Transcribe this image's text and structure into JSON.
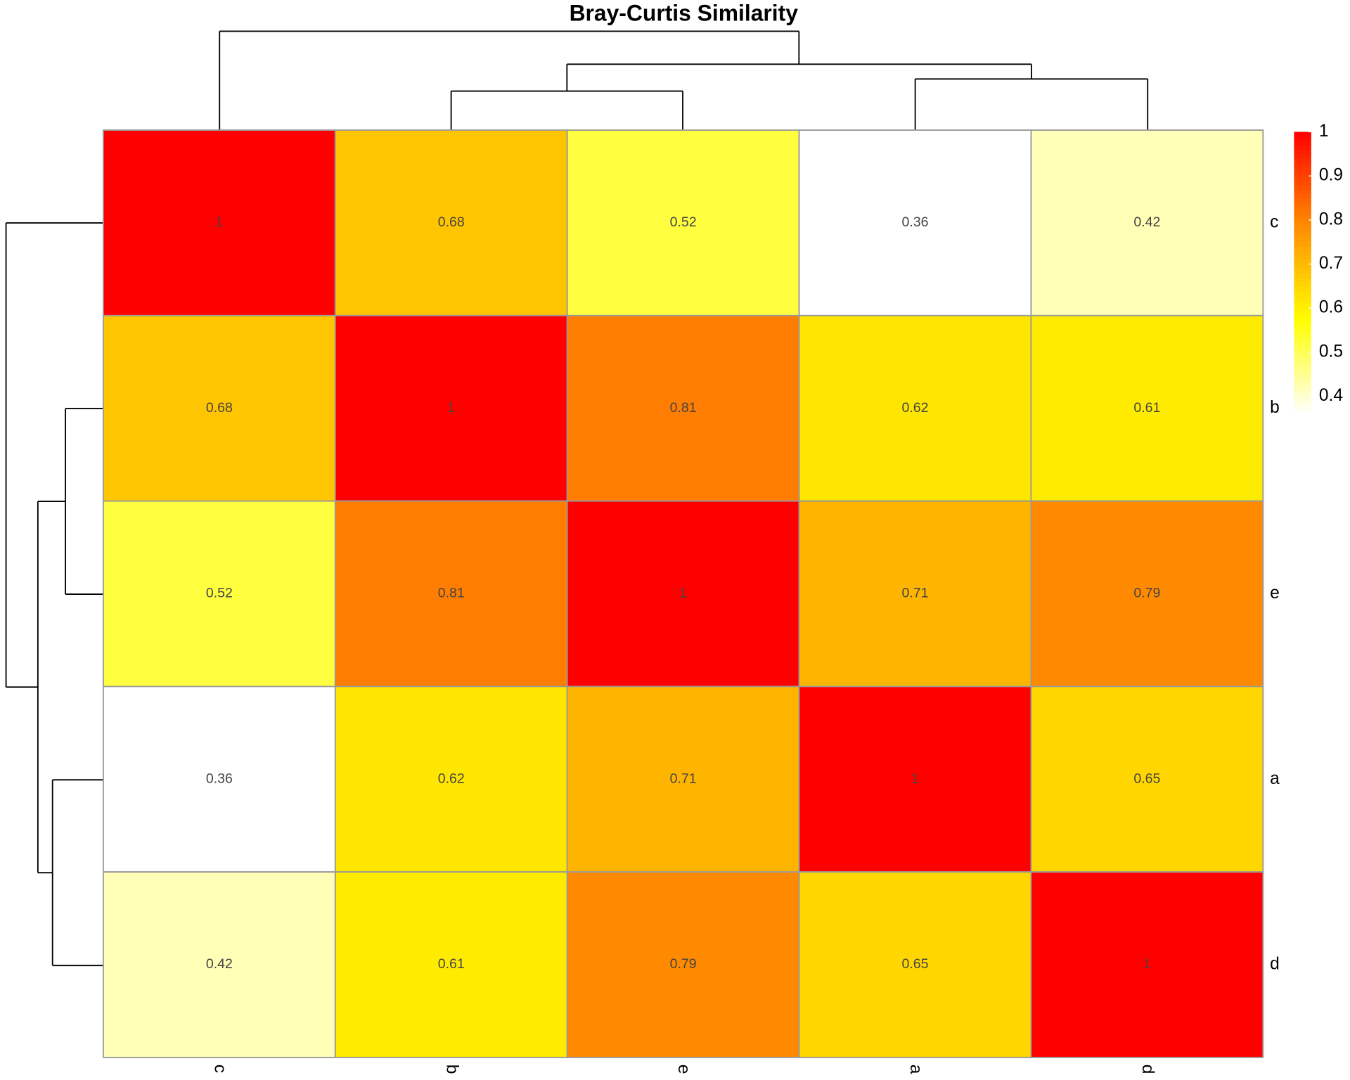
{
  "chart_data": {
    "type": "heatmap",
    "title": "Bray-Curtis Similarity",
    "rows": [
      "c",
      "b",
      "e",
      "a",
      "d"
    ],
    "columns": [
      "c",
      "b",
      "e",
      "a",
      "d"
    ],
    "values": [
      [
        1,
        0.68,
        0.52,
        0.36,
        0.42
      ],
      [
        0.68,
        1,
        0.81,
        0.62,
        0.61
      ],
      [
        0.52,
        0.81,
        1,
        0.71,
        0.79
      ],
      [
        0.36,
        0.62,
        0.71,
        1,
        0.65
      ],
      [
        0.42,
        0.61,
        0.79,
        0.65,
        1
      ]
    ],
    "colors": [
      "#ffffff",
      "#ffff00",
      "#ff8c00",
      "#ff0000"
    ],
    "clim": [
      0.36,
      1
    ],
    "colorbar_ticks": [
      0.4,
      0.5,
      0.6,
      0.7,
      0.8,
      0.9,
      1
    ]
  }
}
